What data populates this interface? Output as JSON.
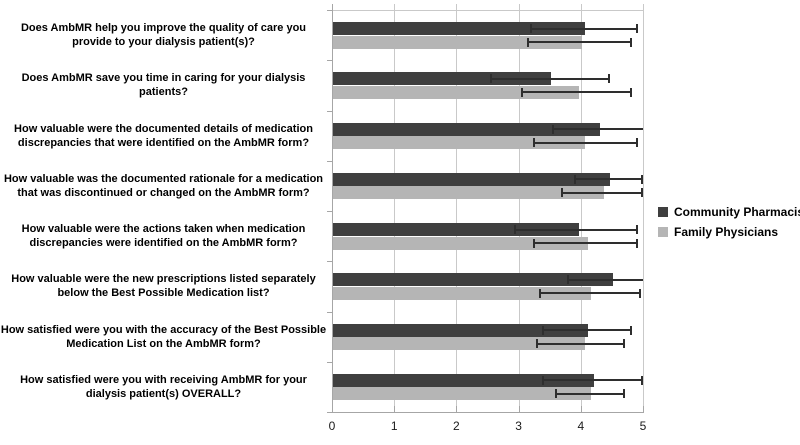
{
  "chart_data": {
    "type": "bar",
    "orientation": "horizontal",
    "title": "",
    "xlabel": "",
    "ylabel": "",
    "xlim": [
      0,
      5
    ],
    "x_ticks": [
      0,
      1,
      2,
      3,
      4,
      5
    ],
    "grid": "vertical",
    "legend_position": "right",
    "colors": {
      "grid": "#c9c9c9",
      "axis": "#a6a6a6",
      "error_bar": "#2e2e2e",
      "text": "#000000"
    },
    "categories": [
      "Does AmbMR help you improve the quality of care you provide to your dialysis patient(s)?",
      "Does AmbMR save you time in caring for your dialysis patients?",
      "How valuable were the documented details of medication discrepancies that were identified on the AmbMR form?",
      "How valuable was the documented rationale for a medication that was discontinued or changed on the AmbMR form?",
      "How valuable were the actions taken when medication discrepancies were identified on the AmbMR form?",
      "How valuable were the new prescriptions listed separately below the Best Possible Medication list?",
      "How satisfied were you with the accuracy of the Best Possible Medication List on the AmbMR form?",
      "How satisfied were you with receiving AmbMR for your dialysis patient(s) OVERALL?"
    ],
    "series": [
      {
        "name": "Community Pharmacists",
        "color": "#3f3f3f",
        "values": [
          4.05,
          3.5,
          4.3,
          4.45,
          3.95,
          4.5,
          4.1,
          4.2
        ],
        "error_low": [
          3.2,
          2.55,
          3.55,
          3.9,
          2.95,
          3.8,
          3.4,
          3.4
        ],
        "error_high": [
          4.9,
          4.45,
          5.05,
          4.99,
          4.9,
          5.2,
          4.8,
          4.99
        ]
      },
      {
        "name": "Family Physicians",
        "color": "#b5b5b5",
        "values": [
          4.0,
          3.95,
          4.05,
          4.35,
          4.1,
          4.15,
          4.05,
          4.15
        ],
        "error_low": [
          3.15,
          3.05,
          3.25,
          3.7,
          3.25,
          3.35,
          3.3,
          3.6
        ],
        "error_high": [
          4.8,
          4.8,
          4.9,
          4.99,
          4.9,
          4.95,
          4.7,
          4.7
        ]
      }
    ]
  }
}
